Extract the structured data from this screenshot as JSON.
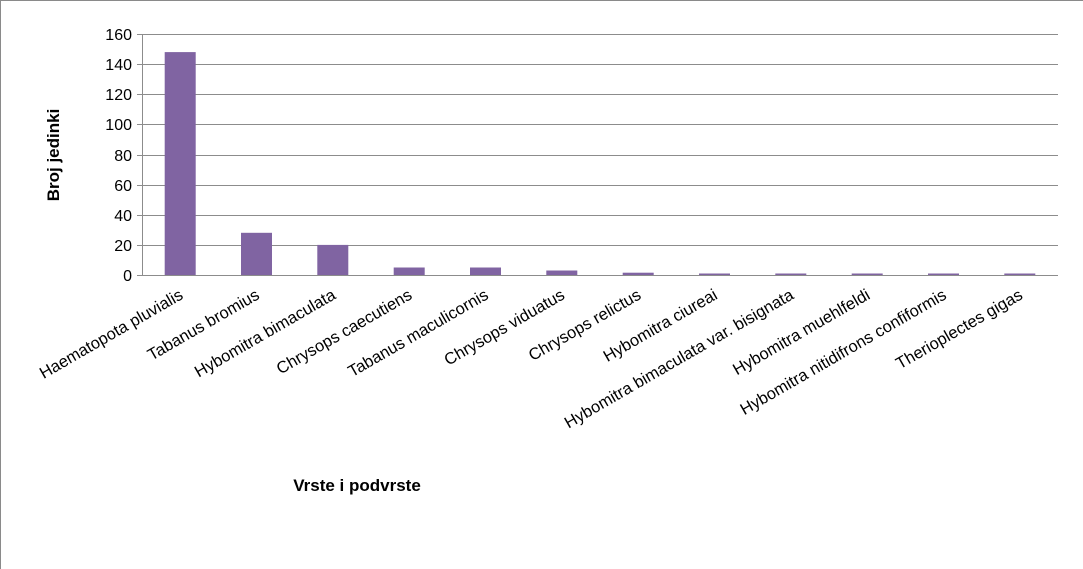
{
  "chart_data": {
    "type": "bar",
    "title": "",
    "xlabel": "Vrste i podvrste",
    "ylabel": "Broj jedinki",
    "ylim": [
      0,
      160
    ],
    "yticks": [
      0,
      20,
      40,
      60,
      80,
      100,
      120,
      140,
      160
    ],
    "grid": true,
    "legend": "none",
    "bar_color": "#8064A2",
    "categories": [
      "Haematopota pluvialis",
      "Tabanus bromius",
      "Hybomitra bimaculata",
      "Chrysops caecutiens",
      "Tabanus maculicornis",
      "Chrysops viduatus",
      "Chrysops relictus",
      "Hybomitra ciureai",
      "Hybomitra bimaculata var. bisignata",
      "Hybomitra muehlfeldi",
      "Hybomitra nitidifrons confiformis",
      "Therioplectes gigas"
    ],
    "values": [
      148,
      28,
      20,
      5,
      5,
      3,
      1.5,
      1,
      1,
      1,
      1,
      1
    ]
  }
}
